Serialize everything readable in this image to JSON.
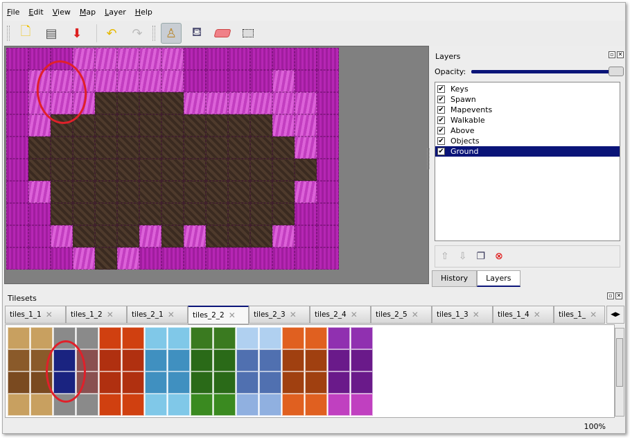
{
  "menu": [
    "File",
    "Edit",
    "View",
    "Map",
    "Layer",
    "Help"
  ],
  "toolbar": {
    "icons": [
      "new-file-icon",
      "open-icon",
      "save-icon",
      "undo-icon",
      "redo-icon",
      "stamp-brush-icon",
      "bucket-fill-icon",
      "eraser-icon",
      "rect-select-icon"
    ],
    "active": "stamp-brush-icon"
  },
  "layers_panel": {
    "title": "Layers",
    "opacity_label": "Opacity:",
    "opacity": 1.0,
    "layers": [
      {
        "name": "Keys",
        "visible": true
      },
      {
        "name": "Spawn",
        "visible": true
      },
      {
        "name": "Mapevents",
        "visible": true
      },
      {
        "name": "Walkable",
        "visible": true
      },
      {
        "name": "Above",
        "visible": true
      },
      {
        "name": "Objects",
        "visible": true
      },
      {
        "name": "Ground",
        "visible": true,
        "selected": true
      }
    ],
    "tabs": [
      "History",
      "Layers"
    ],
    "active_tab": "Layers"
  },
  "tilesets_panel": {
    "title": "Tilesets",
    "tabs": [
      "tiles_1_1",
      "tiles_1_2",
      "tiles_2_1",
      "tiles_2_2",
      "tiles_2_3",
      "tiles_2_4",
      "tiles_2_5",
      "tiles_1_3",
      "tiles_1_4",
      "tiles_1_"
    ],
    "active_tab": "tiles_2_2"
  },
  "status": {
    "zoom": "100%"
  },
  "colors": {
    "accent": "#0a1478",
    "highlight_circle": "#e0202a"
  }
}
